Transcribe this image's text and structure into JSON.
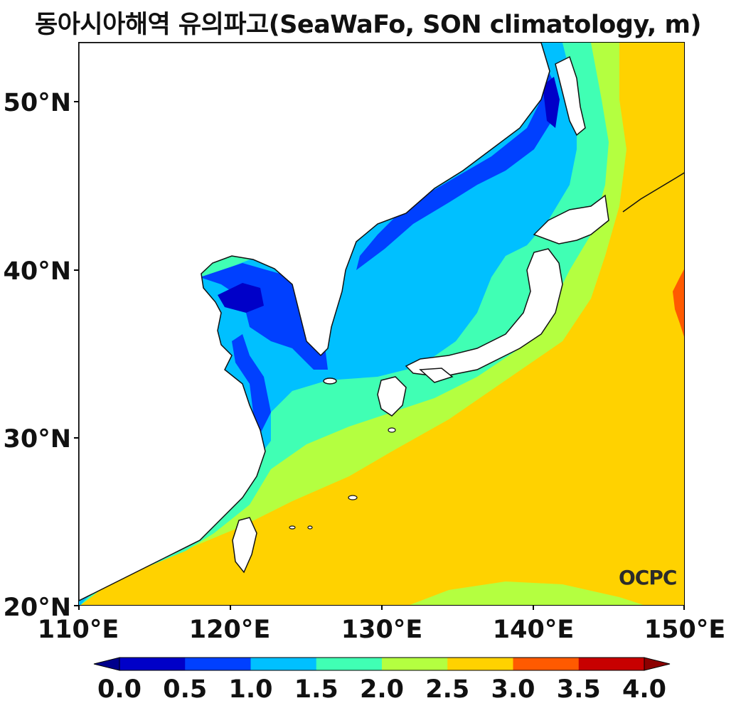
{
  "title": "동아시아해역 유의파고(SeaWaFo, SON climatology, m)",
  "lat_ticks": [
    "20°N",
    "30°N",
    "40°N",
    "50°N"
  ],
  "lon_ticks": [
    "110°E",
    "120°E",
    "130°E",
    "140°E",
    "150°E"
  ],
  "colorbar": {
    "labels": [
      "0.0",
      "0.5",
      "1.0",
      "1.5",
      "2.0",
      "2.5",
      "3.0",
      "3.5",
      "4.0"
    ],
    "colors": [
      "#0000c8",
      "#0040ff",
      "#00c0ff",
      "#40ffb4",
      "#b4ff40",
      "#ffd200",
      "#ff5a00",
      "#c80000"
    ],
    "under_color": "#00008c",
    "over_color": "#8c0000"
  },
  "logo": "OCPC"
}
